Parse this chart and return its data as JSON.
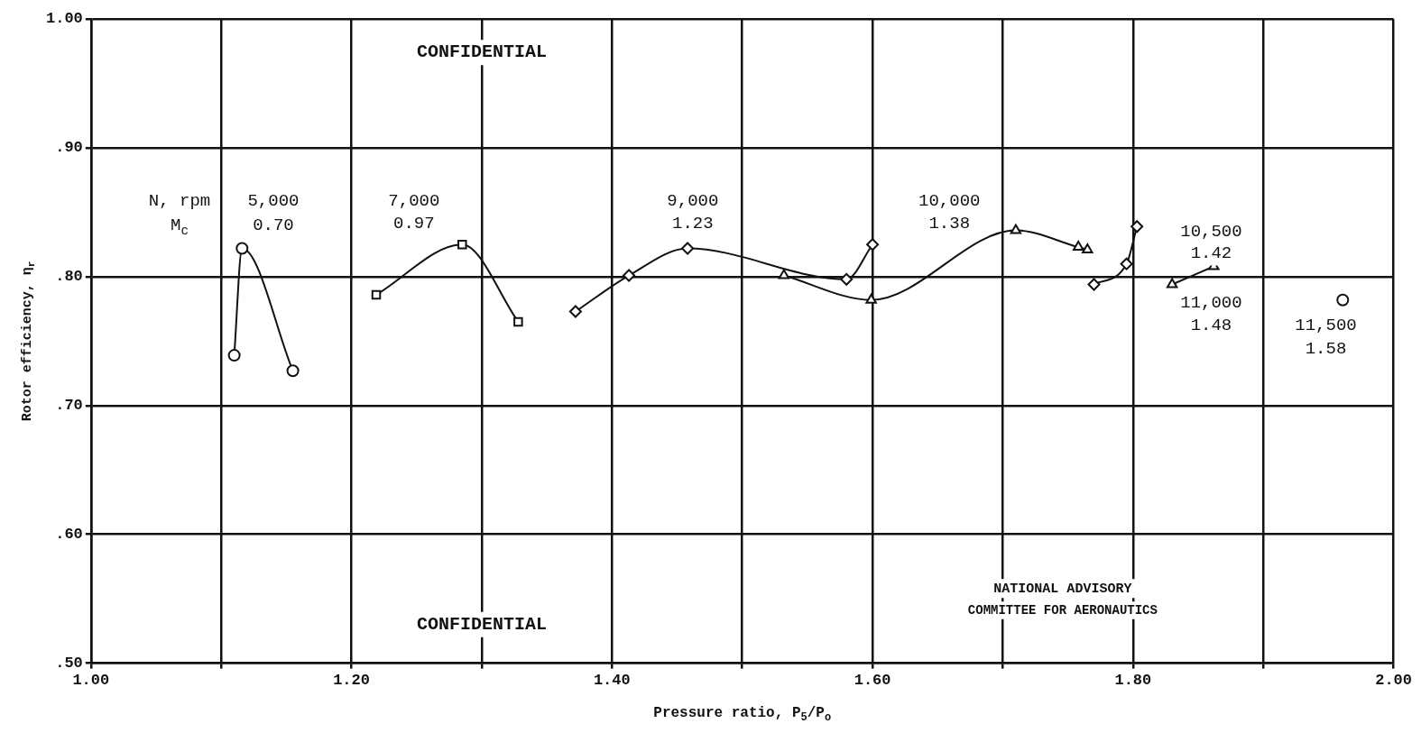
{
  "chart_data": {
    "type": "line",
    "xlabel": "Pressure ratio, P$_{5}$/P$_{o}$",
    "ylabel": "Rotor efficiency, η$_{r}$",
    "xlim": [
      1.0,
      2.0
    ],
    "ylim": [
      0.5,
      1.0
    ],
    "xticks": [
      {
        "value": 1.0,
        "label": "1.00"
      },
      {
        "value": 1.1,
        "label": null
      },
      {
        "value": 1.2,
        "label": "1.20"
      },
      {
        "value": 1.3,
        "label": null
      },
      {
        "value": 1.4,
        "label": "1.40"
      },
      {
        "value": 1.5,
        "label": null
      },
      {
        "value": 1.6,
        "label": "1.60"
      },
      {
        "value": 1.7,
        "label": null
      },
      {
        "value": 1.8,
        "label": "1.80"
      },
      {
        "value": 1.9,
        "label": null
      },
      {
        "value": 2.0,
        "label": "2.00"
      }
    ],
    "yticks": [
      {
        "value": 0.5,
        "label": ".50"
      },
      {
        "value": 0.6,
        "label": ".60"
      },
      {
        "value": 0.7,
        "label": ".70"
      },
      {
        "value": 0.8,
        "label": ".80"
      },
      {
        "value": 0.9,
        "label": ".90"
      },
      {
        "value": 1.0,
        "label": "1.00"
      }
    ],
    "grid": true,
    "legend": false,
    "line_style": "solid",
    "series": [
      {
        "color": "#111111",
        "marker": "circle",
        "x": [
          1.11,
          1.116,
          1.155
        ],
        "values": [
          0.739,
          0.822,
          0.727
        ]
      },
      {
        "color": "#111111",
        "marker": "square",
        "x": [
          1.219,
          1.285,
          1.328
        ],
        "values": [
          0.786,
          0.825,
          0.765
        ]
      },
      {
        "color": "#111111",
        "marker": "diamond",
        "x": [
          1.372,
          1.413,
          1.458,
          1.58,
          1.6
        ],
        "values": [
          0.773,
          0.801,
          0.822,
          0.798,
          0.825
        ]
      },
      {
        "color": "#111111",
        "marker": "triangle",
        "x": [
          1.532,
          1.599,
          1.71,
          1.758,
          1.765
        ],
        "values": [
          0.801,
          0.782,
          0.836,
          0.823,
          0.821
        ]
      },
      {
        "color": "#111111",
        "marker": "diamond",
        "x": [
          1.77,
          1.795,
          1.803
        ],
        "values": [
          0.794,
          0.81,
          0.839
        ]
      },
      {
        "color": "#111111",
        "marker": "triangle",
        "x": [
          1.83,
          1.862
        ],
        "values": [
          0.794,
          0.808
        ]
      },
      {
        "color": "#111111",
        "marker": "circle",
        "x": [
          1.961
        ],
        "values": [
          0.782
        ]
      }
    ],
    "annotations": [
      "N, rpm",
      "5,000",
      "M$_{c}$",
      "0.70",
      "7,000",
      "0.97",
      "9,000",
      "1.23",
      "10,000",
      "1.38",
      "10,500",
      "1.42",
      "11,000",
      "1.48",
      "11,500",
      "1.58",
      "CONFIDENTIAL",
      "CONFIDENTIAL",
      "NATIONAL ADVISORY",
      "COMMITTEE FOR AERONAUTICS"
    ]
  }
}
